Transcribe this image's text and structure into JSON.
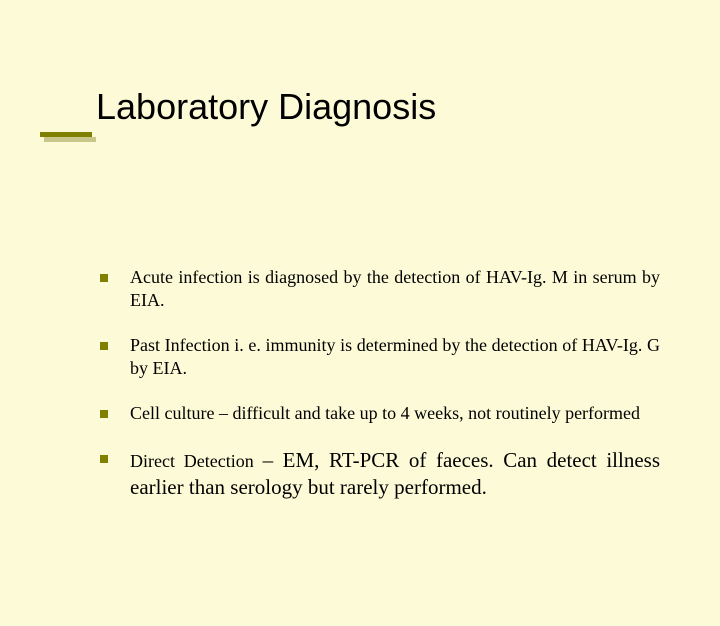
{
  "slide": {
    "background_color": "#fdfbd7",
    "accent_color": "#808000",
    "title": "Laboratory Diagnosis",
    "title_fontsize": 36,
    "title_font": "Verdana",
    "body_font": "Times New Roman",
    "body_fontsize": 18,
    "bullets": [
      {
        "text": "Acute infection is diagnosed by the detection of HAV-Ig. M in serum by EIA."
      },
      {
        "text": "Past Infection i. e. immunity is determined by the detection of HAV-Ig. G by EIA."
      },
      {
        "text": "Cell culture – difficult and take up to 4 weeks, not routinely performed"
      },
      {
        "prefix": "Direct Detection ",
        "suffix": "– EM, RT-PCR of faeces. Can detect illness earlier than serology but rarely performed.",
        "mixed": true
      }
    ]
  }
}
